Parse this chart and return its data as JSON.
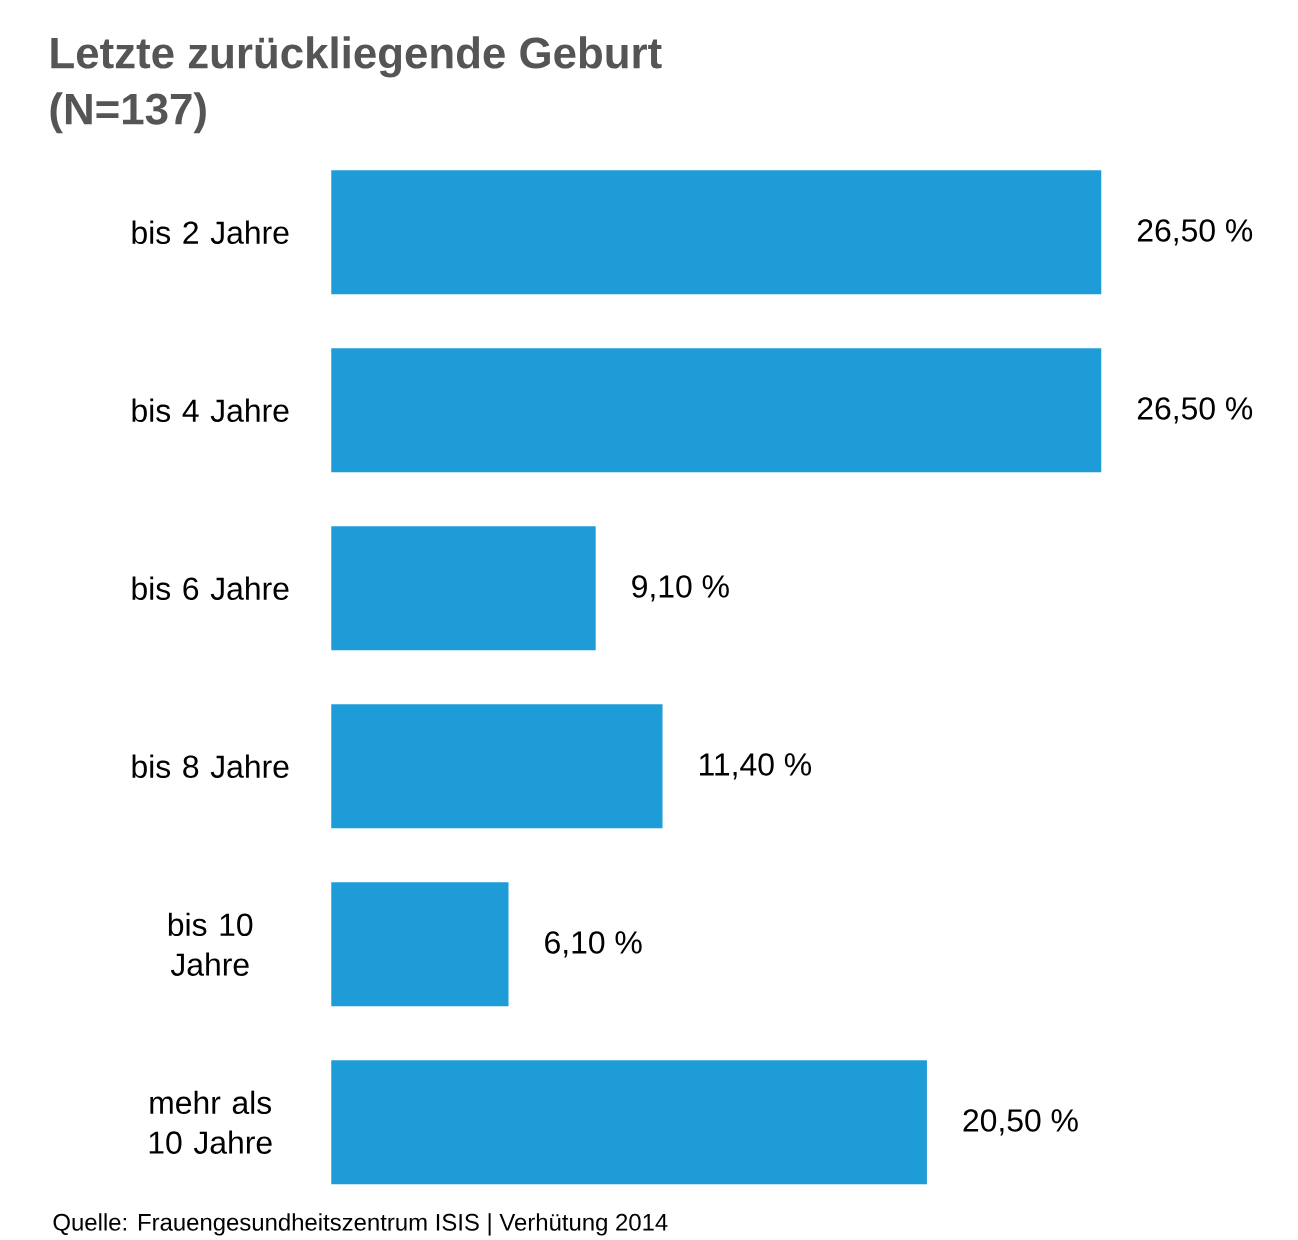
{
  "chart_data": {
    "type": "bar",
    "orientation": "horizontal",
    "title": "Letzte zurückliegende Geburt",
    "subtitle": "(N=137)",
    "categories": [
      "bis 2 Jahre",
      "bis 4 Jahre",
      "bis 6 Jahre",
      "bis 8 Jahre",
      "bis 10 Jahre",
      "mehr als 10 Jahre"
    ],
    "values": [
      26.5,
      26.5,
      9.1,
      11.4,
      6.1,
      20.5
    ],
    "value_labels": [
      "26,50 %",
      "26,50 %",
      "9,10 %",
      "11,40 %",
      "6,10 %",
      "20,50 %"
    ],
    "color": "#1e9cd8",
    "annotations": [
      "Quelle: Frauengesundheitszentrum ISIS | Verhütung 2014"
    ]
  }
}
